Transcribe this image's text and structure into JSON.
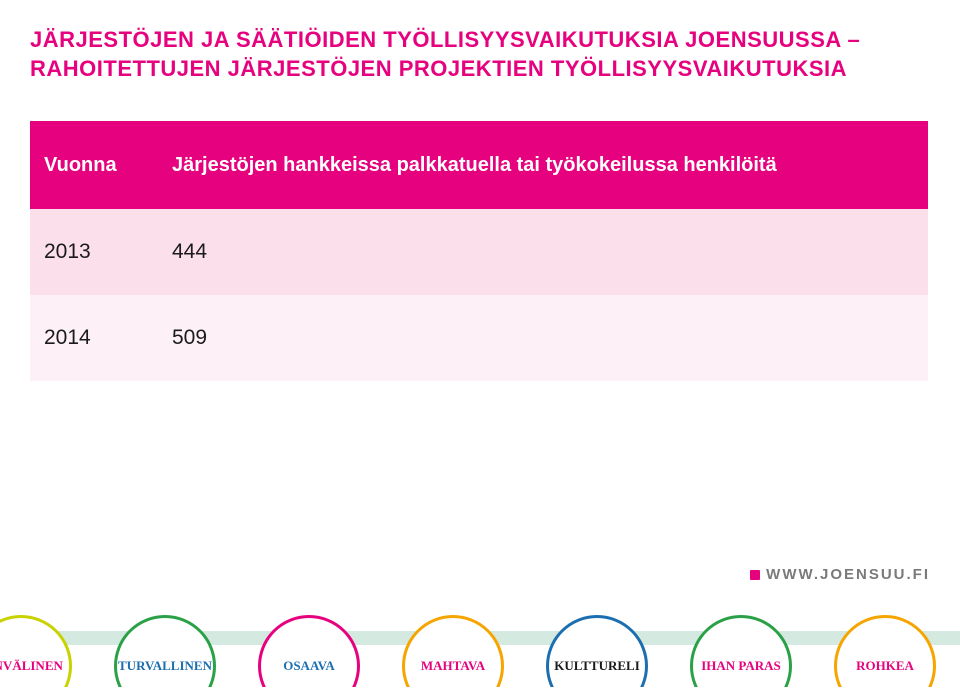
{
  "title_line1": "JÄRJESTÖJEN JA SÄÄTIÖIDEN TYÖLLISYYSVAIKUTUKSIA JOENSUUSSA –",
  "title_line2": "RAHOITETTUJEN JÄRJESTÖJEN PROJEKTIEN TYÖLLISYYSVAIKUTUKSIA",
  "title_color": "#e6017e",
  "table": {
    "header_bg": "#e6017e",
    "row_colors": [
      "#fbe0ec",
      "#fdf1f7"
    ],
    "col_year_header": "Vuonna",
    "col_val_header": "Järjestöjen hankkeissa palkkatuella tai työkokeilussa henkilöitä",
    "rows": [
      {
        "year": "2013",
        "value": "444"
      },
      {
        "year": "2014",
        "value": "509"
      }
    ]
  },
  "footer": {
    "url": "WWW.JOENSUU.FI",
    "url_dot_color": "#e6017e",
    "stripe_color": "#d4e9df",
    "circles": [
      {
        "label": "AINVÄLINEN",
        "border": "#c9d100",
        "text": "#e6017e"
      },
      {
        "label": "TURVALLINEN",
        "border": "#2aa147",
        "text": "#1b6fb0"
      },
      {
        "label": "OSAAVA",
        "border": "#e6017e",
        "text": "#1b6fb0"
      },
      {
        "label": "MAHTAVA",
        "border": "#f6a500",
        "text": "#e6017e"
      },
      {
        "label": "KULTTURELI",
        "border": "#1b6fb0",
        "text": "#1b1b1b"
      },
      {
        "label": "IHAN PARAS",
        "border": "#2aa147",
        "text": "#e6017e"
      },
      {
        "label": "ROHKEA",
        "border": "#f6a500",
        "text": "#e6017e"
      }
    ]
  }
}
